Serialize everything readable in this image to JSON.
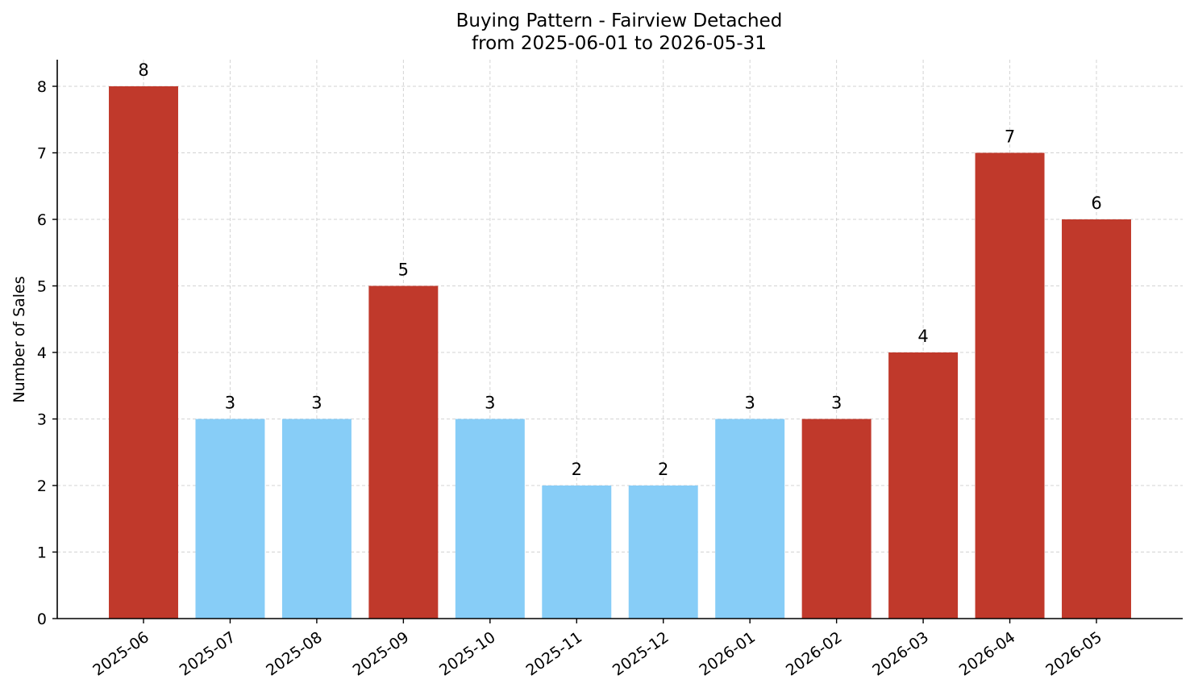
{
  "chart_data": {
    "type": "bar",
    "title": "Buying Pattern - Fairview Detached",
    "subtitle": "from 2025-06-01 to 2026-05-31",
    "xlabel": "",
    "ylabel": "Number of Sales",
    "ylim": [
      0,
      8.4
    ],
    "yticks": [
      0,
      1,
      2,
      3,
      4,
      5,
      6,
      7,
      8
    ],
    "grid": true,
    "categories": [
      "2025-06",
      "2025-07",
      "2025-08",
      "2025-09",
      "2025-10",
      "2025-11",
      "2025-12",
      "2026-01",
      "2026-02",
      "2026-03",
      "2026-04",
      "2026-05"
    ],
    "values": [
      8,
      3,
      3,
      5,
      3,
      2,
      2,
      3,
      3,
      4,
      7,
      6
    ],
    "bar_colors": [
      "#c0392b",
      "#87cdf7",
      "#87cdf7",
      "#c0392b",
      "#87cdf7",
      "#87cdf7",
      "#87cdf7",
      "#87cdf7",
      "#c0392b",
      "#c0392b",
      "#c0392b",
      "#c0392b"
    ],
    "data_labels": [
      "8",
      "3",
      "3",
      "5",
      "3",
      "2",
      "2",
      "3",
      "3",
      "4",
      "7",
      "6"
    ]
  }
}
